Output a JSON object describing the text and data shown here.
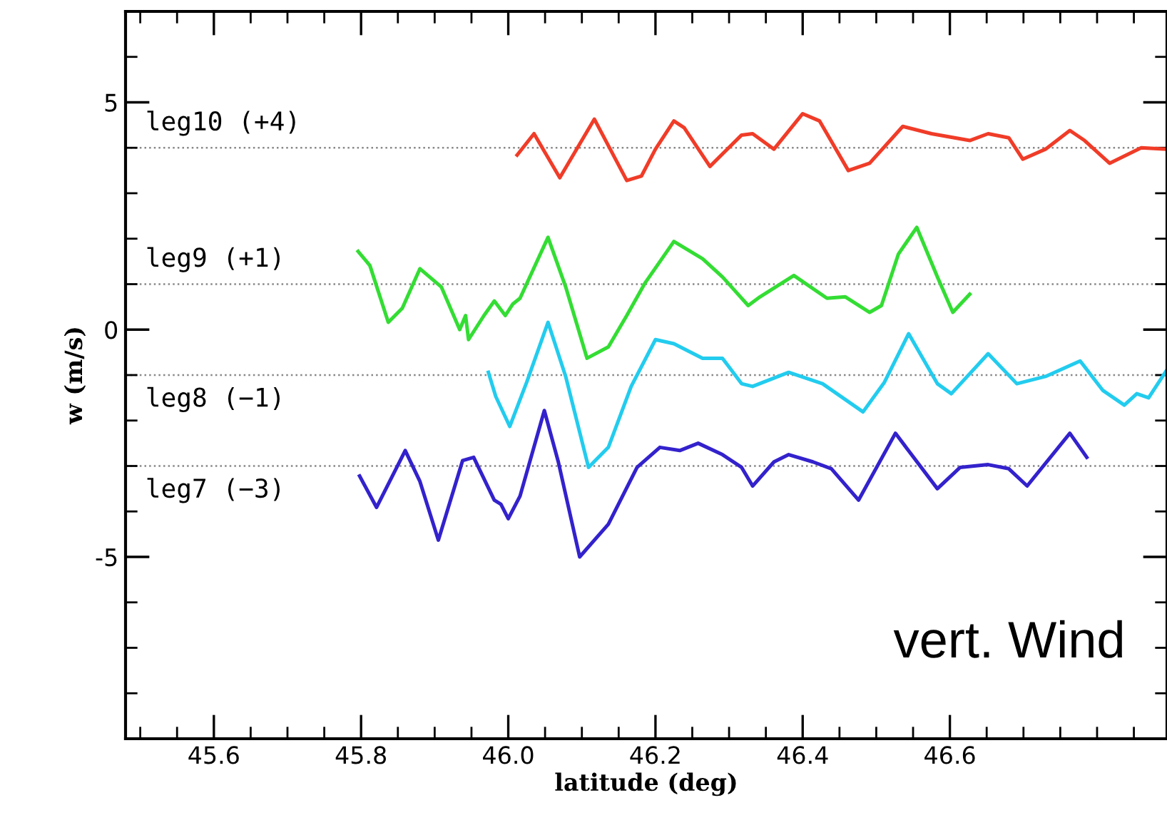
{
  "chart_data": {
    "type": "line",
    "xlabel": "latitude (deg)",
    "ylabel": "w (m/s)",
    "xlim": [
      45.48,
      46.895
    ],
    "xticks": [
      45.6,
      45.8,
      {
        "value": 46,
        "label": "46.0"
      },
      46.2,
      46.4,
      46.6
    ],
    "ylim": [
      -9,
      7
    ],
    "yticks": [
      -5,
      0,
      5
    ],
    "grid": false,
    "legend": false,
    "marker": "none",
    "line_style": "solid",
    "ref_lines": [
      {
        "axis": "y",
        "value": 4,
        "label": "leg10 (+4)",
        "color": "#888888",
        "line_style": "dotted"
      },
      {
        "axis": "y",
        "value": 1,
        "label": "leg9 (+1)",
        "color": "#888888",
        "line_style": "dotted"
      },
      {
        "axis": "y",
        "value": -1,
        "label": "leg8 (−1)",
        "color": "#888888",
        "line_style": "dotted"
      },
      {
        "axis": "y",
        "value": -3,
        "label": "leg7 (−3)",
        "color": "#888888",
        "line_style": "dotted"
      }
    ],
    "annotations": [
      "vert. Wind"
    ],
    "series": [
      {
        "color": "#f03c28",
        "x": [
          46.012,
          46.035,
          46.07,
          46.117,
          46.161,
          46.181,
          46.2,
          46.225,
          46.239,
          46.274,
          46.317,
          46.332,
          46.361,
          46.4,
          46.423,
          46.462,
          46.491,
          46.536,
          46.575,
          46.627,
          46.652,
          46.68,
          46.699,
          46.73,
          46.763,
          46.783,
          46.817,
          46.86,
          46.895
        ],
        "values": [
          3.84,
          4.31,
          3.34,
          4.63,
          3.28,
          3.38,
          3.97,
          4.59,
          4.44,
          3.59,
          4.28,
          4.31,
          3.97,
          4.75,
          4.59,
          3.5,
          3.66,
          4.47,
          4.31,
          4.16,
          4.31,
          4.22,
          3.75,
          3.97,
          4.38,
          4.16,
          3.66,
          4.0,
          3.97
        ]
      },
      {
        "color": "#33dd33",
        "x": [
          45.796,
          45.812,
          45.837,
          45.856,
          45.88,
          45.909,
          45.934,
          45.942,
          45.946,
          45.967,
          45.981,
          45.996,
          46.006,
          46.016,
          46.054,
          46.078,
          46.107,
          46.136,
          46.161,
          46.186,
          46.225,
          46.264,
          46.291,
          46.326,
          46.342,
          46.388,
          46.433,
          46.458,
          46.491,
          46.507,
          46.53,
          46.555,
          46.583,
          46.604,
          46.627
        ],
        "values": [
          1.72,
          1.41,
          0.16,
          0.47,
          1.34,
          0.94,
          0.0,
          0.31,
          -0.22,
          0.31,
          0.63,
          0.31,
          0.56,
          0.69,
          2.03,
          0.94,
          -0.63,
          -0.38,
          0.31,
          1.03,
          1.94,
          1.56,
          1.16,
          0.53,
          0.72,
          1.19,
          0.69,
          0.72,
          0.38,
          0.53,
          1.66,
          2.25,
          1.16,
          0.38,
          0.78
        ]
      },
      {
        "color": "#22ccee",
        "x": [
          45.973,
          45.983,
          46.002,
          46.025,
          46.054,
          46.078,
          46.109,
          46.136,
          46.167,
          46.2,
          46.225,
          46.264,
          46.291,
          46.317,
          46.332,
          46.381,
          46.427,
          46.482,
          46.511,
          46.544,
          46.583,
          46.602,
          46.652,
          46.691,
          46.73,
          46.777,
          46.808,
          46.837,
          46.854,
          46.87,
          46.895
        ],
        "values": [
          -0.94,
          -1.47,
          -2.13,
          -1.16,
          0.16,
          -1.03,
          -3.03,
          -2.59,
          -1.25,
          -0.22,
          -0.31,
          -0.63,
          -0.63,
          -1.19,
          -1.25,
          -0.94,
          -1.19,
          -1.81,
          -1.16,
          -0.09,
          -1.19,
          -1.41,
          -0.53,
          -1.19,
          -1.03,
          -0.69,
          -1.34,
          -1.66,
          -1.41,
          -1.5,
          -0.88
        ]
      },
      {
        "color": "#3322cc",
        "x": [
          45.798,
          45.821,
          45.86,
          45.88,
          45.905,
          45.938,
          45.953,
          45.981,
          45.99,
          46.0,
          46.016,
          46.049,
          46.068,
          46.097,
          46.136,
          46.175,
          46.206,
          46.233,
          46.258,
          46.291,
          46.317,
          46.332,
          46.361,
          46.381,
          46.414,
          46.439,
          46.476,
          46.526,
          46.583,
          46.614,
          46.652,
          46.68,
          46.705,
          46.763,
          46.786
        ],
        "values": [
          -3.22,
          -3.91,
          -2.66,
          -3.34,
          -4.63,
          -2.88,
          -2.81,
          -3.75,
          -3.84,
          -4.16,
          -3.66,
          -1.78,
          -2.91,
          -5.0,
          -4.28,
          -3.03,
          -2.59,
          -2.66,
          -2.5,
          -2.75,
          -3.03,
          -3.44,
          -2.91,
          -2.75,
          -2.91,
          -3.06,
          -3.75,
          -2.28,
          -3.5,
          -3.03,
          -2.97,
          -3.06,
          -3.44,
          -2.28,
          -2.81
        ]
      }
    ]
  }
}
